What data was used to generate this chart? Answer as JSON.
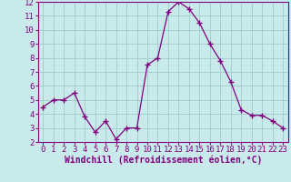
{
  "x": [
    0,
    1,
    2,
    3,
    4,
    5,
    6,
    7,
    8,
    9,
    10,
    11,
    12,
    13,
    14,
    15,
    16,
    17,
    18,
    19,
    20,
    21,
    22,
    23
  ],
  "y": [
    4.5,
    5.0,
    5.0,
    5.5,
    3.8,
    2.7,
    3.5,
    2.2,
    3.0,
    3.0,
    7.5,
    8.0,
    11.3,
    12.0,
    11.5,
    10.5,
    9.0,
    7.8,
    6.3,
    4.3,
    3.9,
    3.9,
    3.5,
    3.0
  ],
  "line_color": "#800080",
  "marker": "+",
  "marker_color": "#800080",
  "bg_color": "#c8eaea",
  "grid_color": "#a0cccc",
  "xlabel": "Windchill (Refroidissement éolien,°C)",
  "xlabel_color": "#800080",
  "tick_color": "#800080",
  "spine_color": "#800080",
  "xlim": [
    -0.5,
    23.5
  ],
  "ylim": [
    2,
    12
  ],
  "yticks": [
    2,
    3,
    4,
    5,
    6,
    7,
    8,
    9,
    10,
    11,
    12
  ],
  "xticks": [
    0,
    1,
    2,
    3,
    4,
    5,
    6,
    7,
    8,
    9,
    10,
    11,
    12,
    13,
    14,
    15,
    16,
    17,
    18,
    19,
    20,
    21,
    22,
    23
  ],
  "font_size": 6.5,
  "xlabel_fontsize": 7.0,
  "line_width": 0.9,
  "marker_size": 4
}
